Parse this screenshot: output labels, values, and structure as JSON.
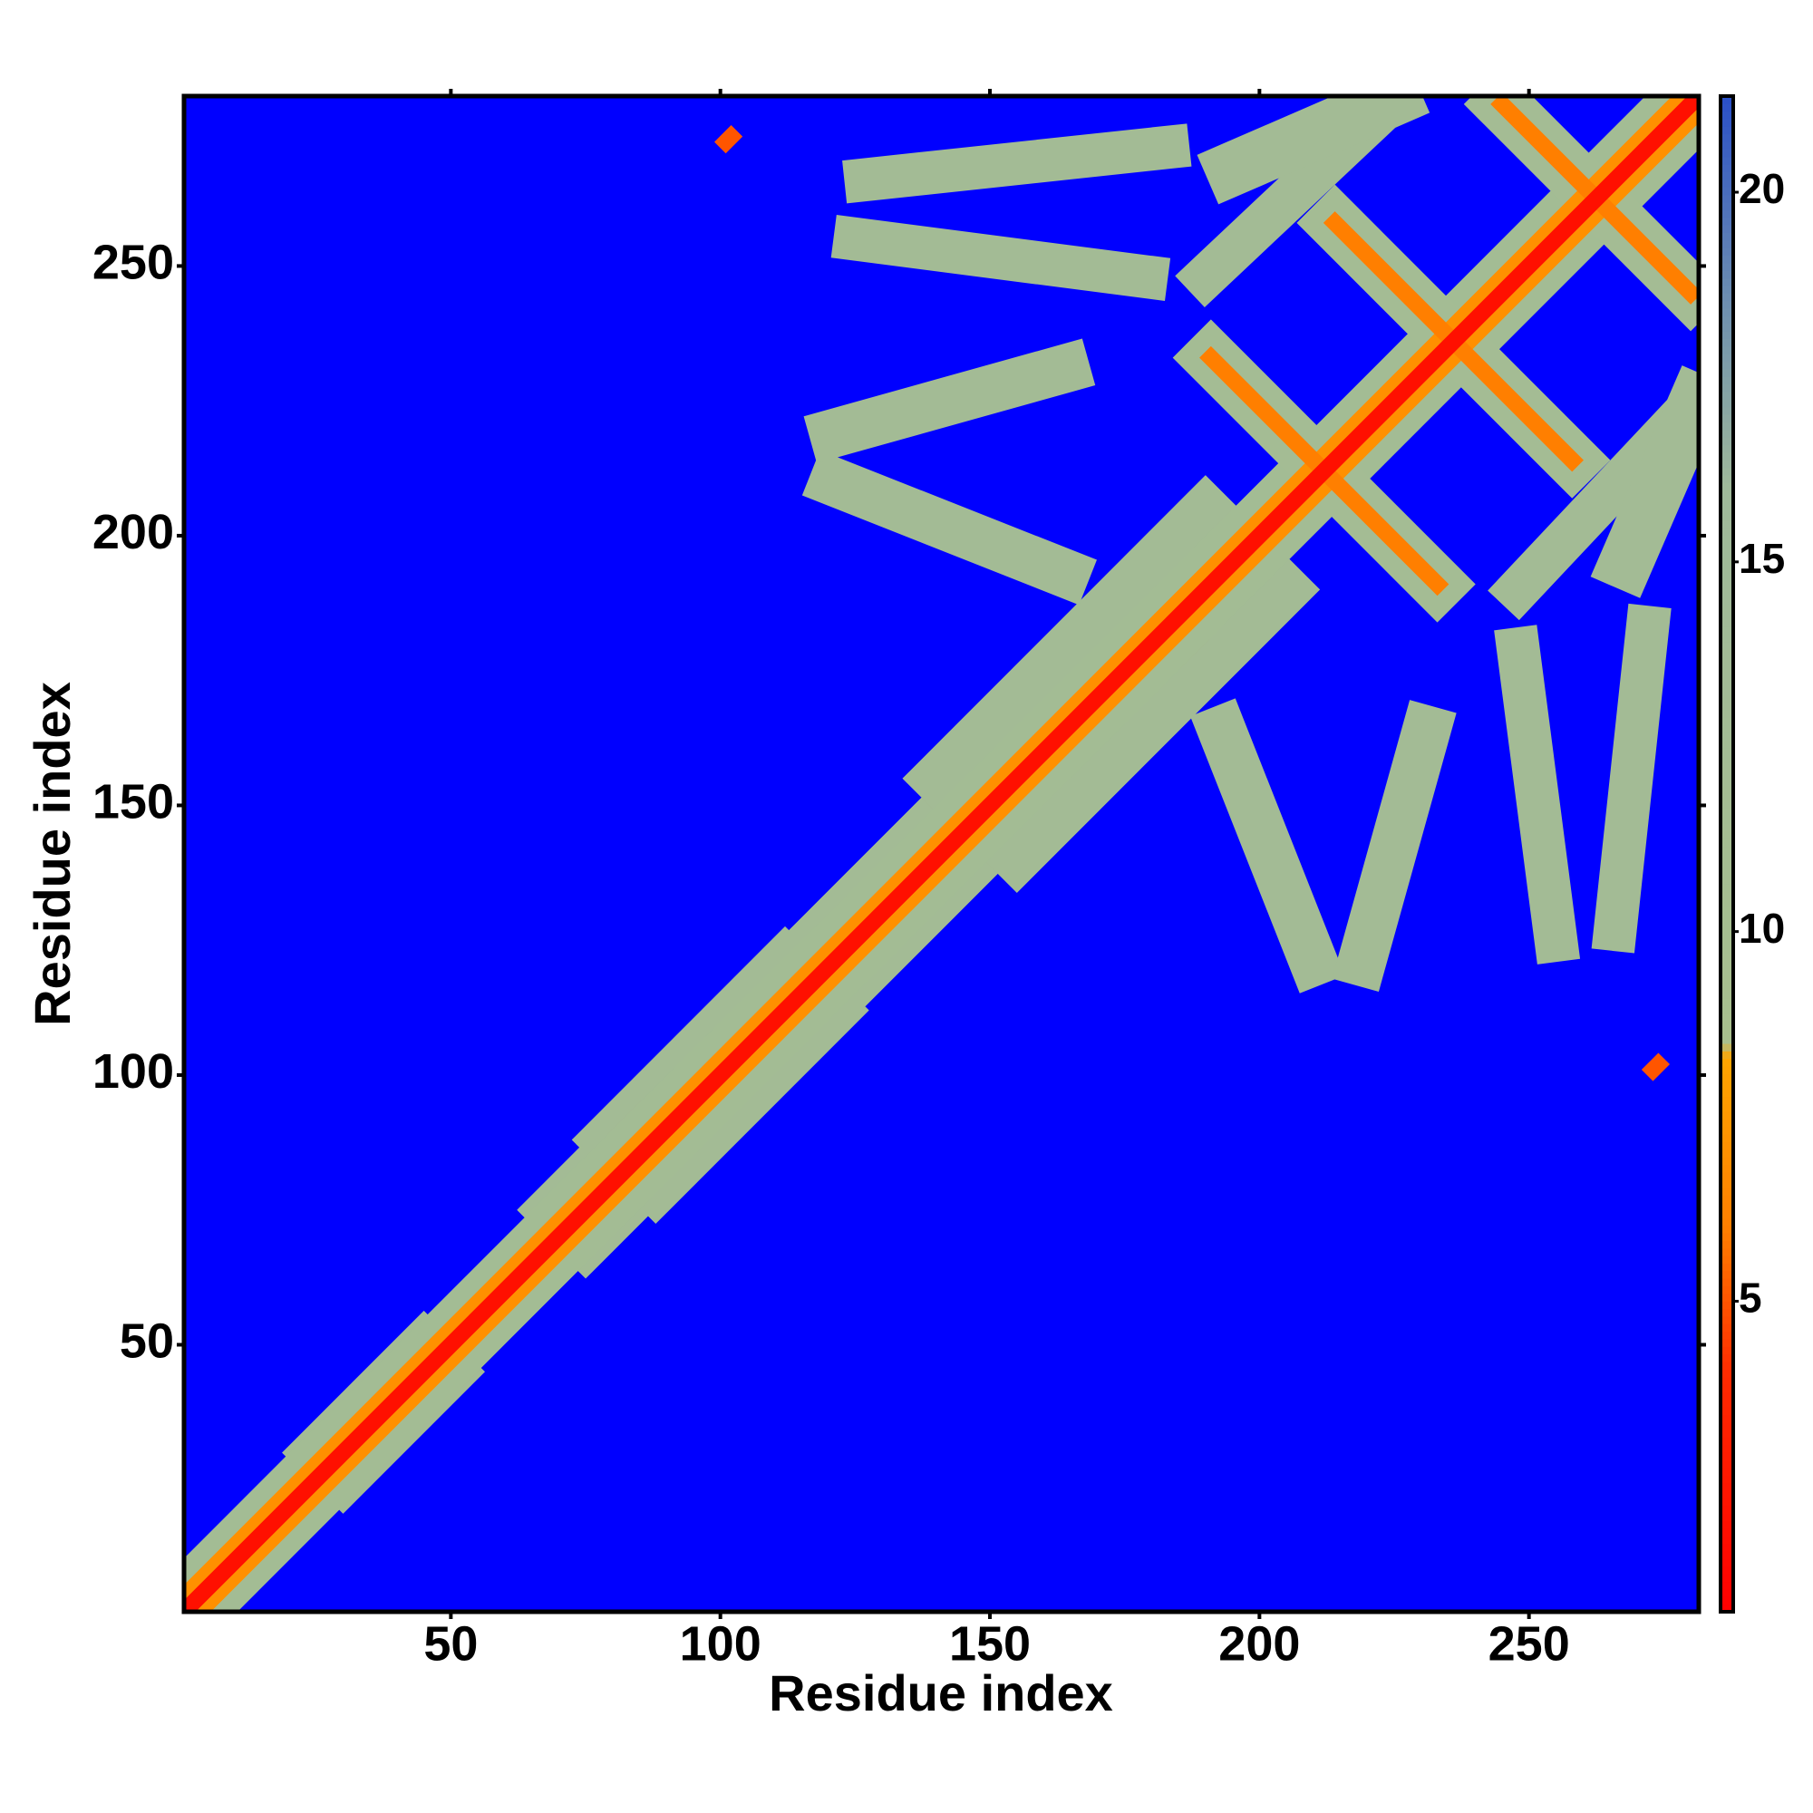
{
  "chart_data": {
    "type": "heatmap",
    "xlabel": "Residue index",
    "ylabel": "Residue index",
    "xlim": [
      0.5,
      281.5
    ],
    "ylim": [
      0.5,
      281.5
    ],
    "xticks": [
      50,
      100,
      150,
      200,
      250
    ],
    "yticks": [
      50,
      100,
      150,
      200,
      250
    ],
    "symmetric": true,
    "background": "#0000ff",
    "zlim": [
      0.8,
      21.3
    ],
    "zticks": [
      5,
      10,
      15,
      20
    ],
    "colorscale": [
      [
        0.8,
        "#ff0000"
      ],
      [
        4,
        "#ff2a00"
      ],
      [
        6,
        "#ff7f00"
      ],
      [
        8.3,
        "#ffa500"
      ],
      [
        8.5,
        "#a8bf8e"
      ],
      [
        16,
        "#9fb99a"
      ],
      [
        18.5,
        "#6e8fb0"
      ],
      [
        21.3,
        "#2a50c8"
      ]
    ],
    "segments": [
      {
        "from": [
          30,
          30
        ],
        "to": [
          45,
          45
        ],
        "w": 16,
        "value": 13
      },
      {
        "from": [
          75,
          75
        ],
        "to": [
          90,
          90
        ],
        "w": 18,
        "value": 13
      },
      {
        "from": [
          88,
          88
        ],
        "to": [
          112,
          112
        ],
        "w": 22,
        "value": 13
      },
      {
        "from": [
          125,
          125
        ],
        "to": [
          145,
          145
        ],
        "w": 20,
        "value": 13
      },
      {
        "from": [
          155,
          155
        ],
        "to": [
          190,
          190
        ],
        "w": 30,
        "value": 13
      },
      {
        "from": [
          193,
          164
        ],
        "to": [
          210,
          121
        ],
        "w": 9,
        "value": 13
      },
      {
        "from": [
          231,
          164
        ],
        "to": [
          219,
          121
        ],
        "w": 9,
        "value": 13
      },
      {
        "from": [
          248,
          179
        ],
        "to": [
          255,
          125
        ],
        "w": 8,
        "value": 13
      },
      {
        "from": [
          272,
          183
        ],
        "to": [
          266,
          127
        ],
        "w": 8,
        "value": 13
      },
      {
        "from": [
          248,
          190
        ],
        "to": [
          280,
          224
        ],
        "w": 8,
        "value": 13
      },
      {
        "from": [
          268,
          195
        ],
        "to": [
          281,
          225
        ],
        "w": 10,
        "value": 13
      },
      {
        "from": [
          1,
          1
        ],
        "to": [
          281,
          281
        ],
        "w": 14,
        "value": 12.5
      },
      {
        "from": [
          191,
          233
        ],
        "to": [
          233,
          191
        ],
        "w": 10,
        "value": 12
      },
      {
        "from": [
          214,
          258
        ],
        "to": [
          258,
          214
        ],
        "w": 10,
        "value": 12
      },
      {
        "from": [
          245,
          280
        ],
        "to": [
          280,
          245
        ],
        "w": 10,
        "value": 12
      },
      {
        "from": [
          1,
          1
        ],
        "to": [
          281,
          281
        ],
        "w": 7,
        "value": 7
      },
      {
        "from": [
          191,
          233
        ],
        "to": [
          233,
          191
        ],
        "w": 3,
        "value": 6
      },
      {
        "from": [
          214,
          258
        ],
        "to": [
          258,
          214
        ],
        "w": 3,
        "value": 6
      },
      {
        "from": [
          245,
          280
        ],
        "to": [
          280,
          245
        ],
        "w": 3,
        "value": 6
      },
      {
        "from": [
          1,
          1
        ],
        "to": [
          281,
          281
        ],
        "w": 3,
        "value": 2
      },
      {
        "from": [
          273,
          101
        ],
        "to": [
          274,
          102
        ],
        "w": 3,
        "value": 5
      }
    ]
  }
}
